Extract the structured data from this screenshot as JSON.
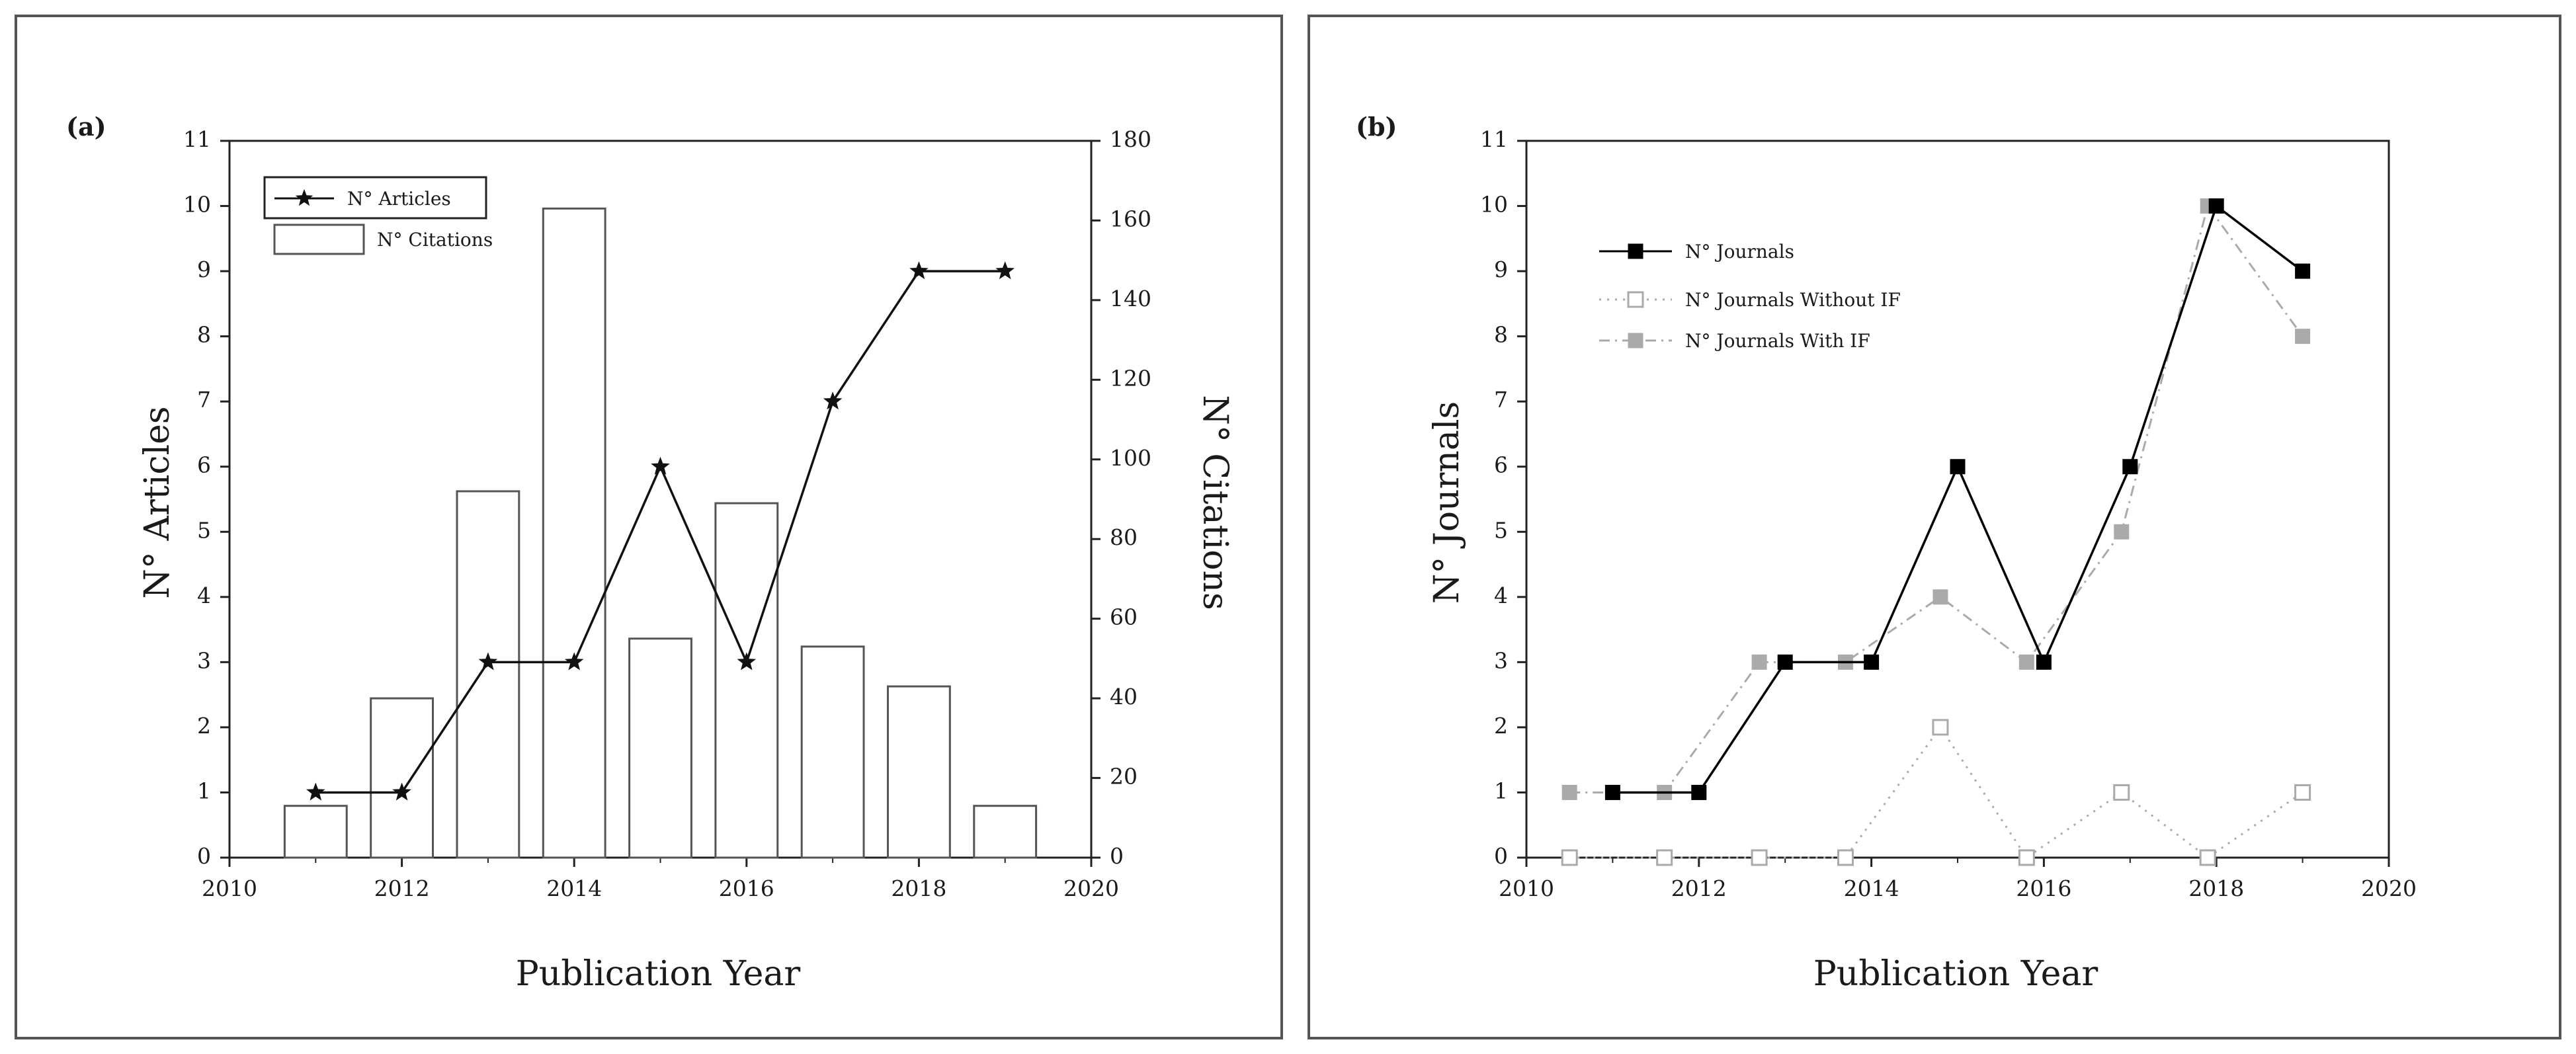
{
  "chart_data": [
    {
      "type": "bar+line",
      "panel_label": "(a)",
      "xlabel": "Publication Year",
      "ylabel_left": "N° Articles",
      "ylabel_right": "N° Citations",
      "xlim": [
        2010,
        2020
      ],
      "xticks": [
        2010,
        2012,
        2014,
        2016,
        2018,
        2020
      ],
      "ylim_left": [
        0,
        11
      ],
      "yticks_left": [
        0,
        1,
        2,
        3,
        4,
        5,
        6,
        7,
        8,
        9,
        10,
        11
      ],
      "ylim_right": [
        0,
        180
      ],
      "yticks_right": [
        0,
        20,
        40,
        60,
        80,
        100,
        120,
        140,
        160,
        180
      ],
      "x": [
        2011,
        2012,
        2013,
        2014,
        2015,
        2016,
        2017,
        2018,
        2019
      ],
      "series": [
        {
          "name": "N° Articles",
          "axis": "left",
          "kind": "line",
          "marker": "star",
          "color": "#111111",
          "values": [
            1,
            1,
            3,
            3,
            6,
            3,
            7,
            9,
            9
          ]
        },
        {
          "name": "N° Citations",
          "axis": "right",
          "kind": "bar",
          "color": "#555555",
          "values": [
            13,
            40,
            92,
            163,
            55,
            89,
            53,
            43,
            13
          ]
        }
      ],
      "legend": [
        "N° Articles",
        "N° Citations"
      ],
      "legend_position": "top-left"
    },
    {
      "type": "line",
      "panel_label": "(b)",
      "xlabel": "Publication Year",
      "ylabel": "N° Journals",
      "xlim": [
        2010,
        2020
      ],
      "xticks": [
        2010,
        2012,
        2014,
        2016,
        2018,
        2020
      ],
      "ylim": [
        0,
        11
      ],
      "yticks": [
        0,
        1,
        2,
        3,
        4,
        5,
        6,
        7,
        8,
        9,
        10,
        11
      ],
      "series": [
        {
          "name": "N° Journals",
          "style": "solid",
          "marker": "filled-square",
          "color": "#000000",
          "x": [
            2011,
            2012,
            2013,
            2014,
            2015,
            2016,
            2017,
            2018,
            2019
          ],
          "values": [
            1,
            1,
            3,
            3,
            6,
            3,
            6,
            10,
            9
          ]
        },
        {
          "name": "N° Journals Without IF",
          "style": "dotted",
          "marker": "open-square",
          "color": "#aaaaaa",
          "x": [
            2010.5,
            2011.6,
            2012.7,
            2013.7,
            2014.8,
            2015.8,
            2016.9,
            2017.9,
            2019
          ],
          "values": [
            0,
            0,
            0,
            0,
            2,
            0,
            1,
            0,
            1
          ]
        },
        {
          "name": "N° Journals With IF",
          "style": "dash-dot",
          "marker": "filled-square",
          "color": "#aaaaaa",
          "x": [
            2010.5,
            2011.6,
            2012.7,
            2013.7,
            2014.8,
            2015.8,
            2016.9,
            2017.9,
            2019
          ],
          "values": [
            1,
            1,
            3,
            3,
            4,
            3,
            5,
            10,
            8
          ]
        }
      ],
      "legend": [
        "N° Journals",
        "N° Journals Without IF",
        "N° Journals With IF"
      ],
      "legend_position": "top-left"
    }
  ]
}
